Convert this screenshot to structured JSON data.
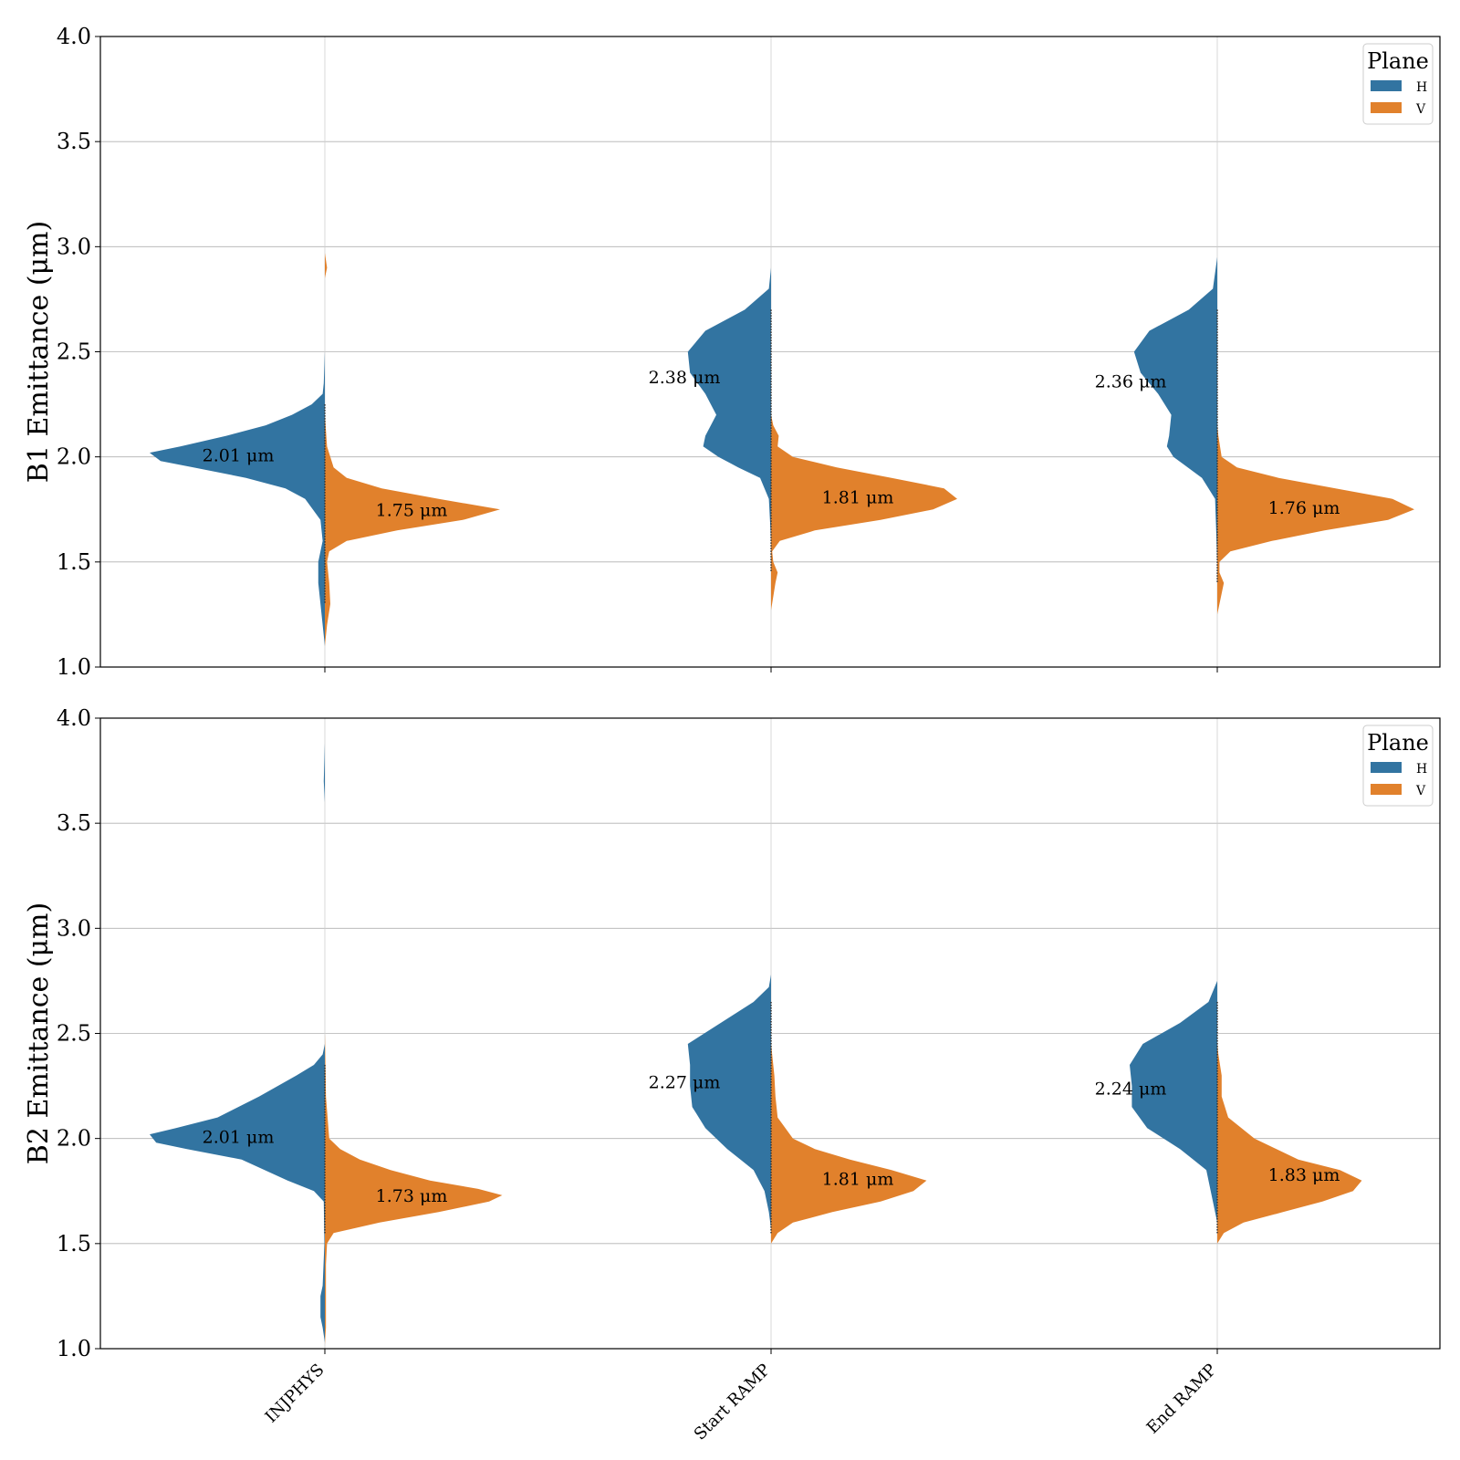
{
  "chart_data": [
    {
      "type": "violin",
      "ylabel": "B1 Emittance (μm)",
      "ylim": [
        1.0,
        4.0
      ],
      "yticks": [
        "1.0",
        "1.5",
        "2.0",
        "2.5",
        "3.0",
        "3.5",
        "4.0"
      ],
      "categories": [
        "INJPHYS",
        "Start RAMP",
        "End RAMP"
      ],
      "show_xtick_labels": false,
      "grid": true,
      "legend": {
        "title": "Plane",
        "placement": "top-right",
        "entries": [
          "H",
          "V"
        ]
      },
      "series": [
        {
          "name": "H",
          "color": "#3274a1",
          "side": "left",
          "medians": [
            2.01,
            2.38,
            2.36
          ],
          "annotations": [
            "2.01 μm",
            "2.38 μm",
            "2.36 μm"
          ],
          "density": [
            [
              [
                1.1,
                0.0
              ],
              [
                1.2,
                0.01
              ],
              [
                1.3,
                0.02
              ],
              [
                1.4,
                0.03
              ],
              [
                1.5,
                0.03
              ],
              [
                1.6,
                0.01
              ],
              [
                1.7,
                0.02
              ],
              [
                1.8,
                0.09
              ],
              [
                1.85,
                0.18
              ],
              [
                1.9,
                0.36
              ],
              [
                1.95,
                0.6
              ],
              [
                1.98,
                0.75
              ],
              [
                2.02,
                0.8
              ],
              [
                2.05,
                0.66
              ],
              [
                2.1,
                0.45
              ],
              [
                2.15,
                0.27
              ],
              [
                2.2,
                0.15
              ],
              [
                2.25,
                0.06
              ],
              [
                2.3,
                0.01
              ],
              [
                2.35,
                0.005
              ],
              [
                2.5,
                0.0
              ]
            ],
            [
              [
                1.3,
                0.0
              ],
              [
                1.6,
                0.0
              ],
              [
                1.8,
                0.01
              ],
              [
                1.9,
                0.05
              ],
              [
                1.95,
                0.15
              ],
              [
                2.0,
                0.24
              ],
              [
                2.05,
                0.31
              ],
              [
                2.1,
                0.3
              ],
              [
                2.2,
                0.25
              ],
              [
                2.3,
                0.3
              ],
              [
                2.4,
                0.37
              ],
              [
                2.5,
                0.38
              ],
              [
                2.6,
                0.3
              ],
              [
                2.7,
                0.12
              ],
              [
                2.8,
                0.01
              ],
              [
                2.9,
                0.0
              ]
            ],
            [
              [
                1.25,
                0.0
              ],
              [
                1.5,
                0.0
              ],
              [
                1.8,
                0.01
              ],
              [
                1.9,
                0.07
              ],
              [
                2.0,
                0.2
              ],
              [
                2.05,
                0.23
              ],
              [
                2.1,
                0.22
              ],
              [
                2.2,
                0.21
              ],
              [
                2.3,
                0.27
              ],
              [
                2.4,
                0.35
              ],
              [
                2.5,
                0.38
              ],
              [
                2.6,
                0.31
              ],
              [
                2.7,
                0.13
              ],
              [
                2.8,
                0.02
              ],
              [
                2.95,
                0.0
              ],
              [
                3.5,
                0.0
              ],
              [
                4.0,
                0.0
              ]
            ]
          ]
        },
        {
          "name": "V",
          "color": "#e1812c",
          "side": "right",
          "medians": [
            1.75,
            1.81,
            1.76
          ],
          "annotations": [
            "1.75 μm",
            "1.81 μm",
            "1.76 μm"
          ],
          "density": [
            [
              [
                1.1,
                0.0
              ],
              [
                1.2,
                0.01
              ],
              [
                1.3,
                0.025
              ],
              [
                1.4,
                0.02
              ],
              [
                1.5,
                0.01
              ],
              [
                1.55,
                0.02
              ],
              [
                1.6,
                0.1
              ],
              [
                1.65,
                0.33
              ],
              [
                1.7,
                0.63
              ],
              [
                1.75,
                0.8
              ],
              [
                1.8,
                0.52
              ],
              [
                1.85,
                0.26
              ],
              [
                1.9,
                0.1
              ],
              [
                1.95,
                0.04
              ],
              [
                2.05,
                0.01
              ],
              [
                2.2,
                0.0
              ],
              [
                2.85,
                0.0
              ],
              [
                2.9,
                0.01
              ],
              [
                2.97,
                0.0
              ]
            ],
            [
              [
                1.27,
                0.0
              ],
              [
                1.4,
                0.02
              ],
              [
                1.45,
                0.03
              ],
              [
                1.5,
                0.01
              ],
              [
                1.55,
                0.005
              ],
              [
                1.6,
                0.04
              ],
              [
                1.65,
                0.2
              ],
              [
                1.7,
                0.5
              ],
              [
                1.75,
                0.74
              ],
              [
                1.8,
                0.85
              ],
              [
                1.85,
                0.79
              ],
              [
                1.9,
                0.55
              ],
              [
                1.95,
                0.3
              ],
              [
                2.0,
                0.1
              ],
              [
                2.05,
                0.03
              ],
              [
                2.1,
                0.035
              ],
              [
                2.15,
                0.01
              ],
              [
                2.2,
                0.0
              ]
            ],
            [
              [
                1.25,
                0.0
              ],
              [
                1.35,
                0.02
              ],
              [
                1.4,
                0.03
              ],
              [
                1.45,
                0.01
              ],
              [
                1.5,
                0.01
              ],
              [
                1.55,
                0.06
              ],
              [
                1.6,
                0.25
              ],
              [
                1.65,
                0.49
              ],
              [
                1.7,
                0.78
              ],
              [
                1.75,
                0.9
              ],
              [
                1.8,
                0.8
              ],
              [
                1.85,
                0.54
              ],
              [
                1.9,
                0.28
              ],
              [
                1.95,
                0.09
              ],
              [
                2.0,
                0.02
              ],
              [
                2.1,
                0.005
              ],
              [
                2.15,
                0.0
              ]
            ]
          ]
        }
      ]
    },
    {
      "type": "violin",
      "ylabel": "B2 Emittance (μm)",
      "ylim": [
        1.0,
        4.0
      ],
      "yticks": [
        "1.0",
        "1.5",
        "2.0",
        "2.5",
        "3.0",
        "3.5",
        "4.0"
      ],
      "categories": [
        "INJPHYS",
        "Start RAMP",
        "End RAMP"
      ],
      "show_xtick_labels": true,
      "grid": true,
      "legend": {
        "title": "Plane",
        "placement": "top-right",
        "entries": [
          "H",
          "V"
        ]
      },
      "series": [
        {
          "name": "H",
          "color": "#3274a1",
          "side": "left",
          "medians": [
            2.01,
            2.27,
            2.24
          ],
          "annotations": [
            "2.01 μm",
            "2.27 μm",
            "2.24 μm"
          ],
          "density": [
            [
              [
                1.03,
                0.0
              ],
              [
                1.1,
                0.01
              ],
              [
                1.15,
                0.02
              ],
              [
                1.2,
                0.02
              ],
              [
                1.25,
                0.02
              ],
              [
                1.3,
                0.01
              ],
              [
                1.5,
                0.002
              ],
              [
                1.7,
                0.005
              ],
              [
                1.75,
                0.05
              ],
              [
                1.8,
                0.17
              ],
              [
                1.9,
                0.38
              ],
              [
                1.95,
                0.63
              ],
              [
                1.98,
                0.77
              ],
              [
                2.02,
                0.8
              ],
              [
                2.05,
                0.68
              ],
              [
                2.1,
                0.49
              ],
              [
                2.2,
                0.3
              ],
              [
                2.3,
                0.13
              ],
              [
                2.35,
                0.05
              ],
              [
                2.4,
                0.01
              ],
              [
                2.45,
                0.0
              ],
              [
                3.6,
                0.0
              ],
              [
                3.7,
                0.005
              ],
              [
                3.88,
                0.0
              ]
            ],
            [
              [
                1.57,
                0.0
              ],
              [
                1.65,
                0.01
              ],
              [
                1.75,
                0.03
              ],
              [
                1.85,
                0.08
              ],
              [
                1.95,
                0.2
              ],
              [
                2.05,
                0.3
              ],
              [
                2.15,
                0.36
              ],
              [
                2.25,
                0.37
              ],
              [
                2.35,
                0.37
              ],
              [
                2.45,
                0.38
              ],
              [
                2.55,
                0.23
              ],
              [
                2.65,
                0.08
              ],
              [
                2.72,
                0.01
              ],
              [
                2.78,
                0.0
              ]
            ],
            [
              [
                1.6,
                0.0
              ],
              [
                1.7,
                0.02
              ],
              [
                1.85,
                0.05
              ],
              [
                1.95,
                0.17
              ],
              [
                2.05,
                0.32
              ],
              [
                2.15,
                0.39
              ],
              [
                2.25,
                0.39
              ],
              [
                2.35,
                0.4
              ],
              [
                2.45,
                0.34
              ],
              [
                2.55,
                0.17
              ],
              [
                2.65,
                0.04
              ],
              [
                2.75,
                0.0
              ]
            ]
          ]
        },
        {
          "name": "V",
          "color": "#e1812c",
          "side": "right",
          "medians": [
            1.73,
            1.81,
            1.83
          ],
          "annotations": [
            "1.73 μm",
            "1.81 μm",
            "1.83 μm"
          ],
          "density": [
            [
              [
                1.02,
                0.0
              ],
              [
                1.1,
                0.005
              ],
              [
                1.2,
                0.005
              ],
              [
                1.3,
                0.005
              ],
              [
                1.4,
                0.005
              ],
              [
                1.5,
                0.01
              ],
              [
                1.55,
                0.04
              ],
              [
                1.6,
                0.25
              ],
              [
                1.65,
                0.52
              ],
              [
                1.7,
                0.75
              ],
              [
                1.73,
                0.81
              ],
              [
                1.76,
                0.7
              ],
              [
                1.8,
                0.48
              ],
              [
                1.85,
                0.3
              ],
              [
                1.9,
                0.16
              ],
              [
                1.95,
                0.07
              ],
              [
                2.0,
                0.02
              ],
              [
                2.2,
                0.005
              ],
              [
                2.4,
                0.002
              ],
              [
                2.5,
                0.0
              ]
            ],
            [
              [
                1.5,
                0.0
              ],
              [
                1.55,
                0.03
              ],
              [
                1.6,
                0.1
              ],
              [
                1.65,
                0.28
              ],
              [
                1.7,
                0.5
              ],
              [
                1.75,
                0.65
              ],
              [
                1.8,
                0.71
              ],
              [
                1.85,
                0.55
              ],
              [
                1.9,
                0.36
              ],
              [
                1.95,
                0.2
              ],
              [
                2.0,
                0.1
              ],
              [
                2.1,
                0.03
              ],
              [
                2.2,
                0.02
              ],
              [
                2.3,
                0.015
              ],
              [
                2.4,
                0.005
              ],
              [
                2.45,
                0.0
              ]
            ],
            [
              [
                1.5,
                0.0
              ],
              [
                1.55,
                0.03
              ],
              [
                1.6,
                0.12
              ],
              [
                1.65,
                0.3
              ],
              [
                1.7,
                0.48
              ],
              [
                1.75,
                0.62
              ],
              [
                1.8,
                0.66
              ],
              [
                1.85,
                0.56
              ],
              [
                1.9,
                0.37
              ],
              [
                2.0,
                0.17
              ],
              [
                2.1,
                0.05
              ],
              [
                2.2,
                0.02
              ],
              [
                2.3,
                0.02
              ],
              [
                2.4,
                0.005
              ],
              [
                2.45,
                0.0
              ]
            ]
          ]
        }
      ]
    }
  ]
}
